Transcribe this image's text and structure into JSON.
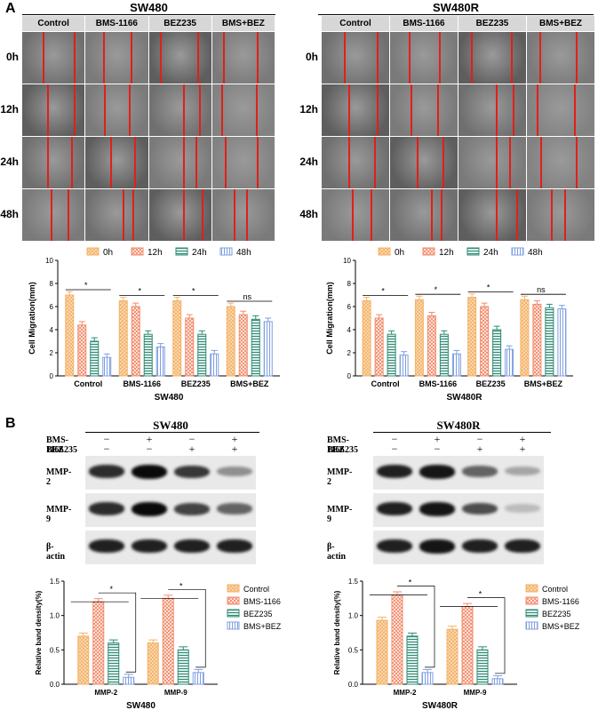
{
  "panel_a": {
    "letter": "A",
    "groups": [
      {
        "title": "SW480",
        "headers": [
          "Control",
          "BMS-1166",
          "BEZ235",
          "BMS+BEZ"
        ],
        "rows": [
          "0h",
          "12h",
          "24h",
          "48h"
        ]
      },
      {
        "title": "SW480R",
        "headers": [
          "Control",
          "BMS-1166",
          "BEZ235",
          "BMS+BEZ"
        ],
        "rows": [
          "0h",
          "12h",
          "24h",
          "48h"
        ]
      }
    ]
  },
  "panel_b": {
    "letter": "B",
    "blots": [
      {
        "title": "SW480",
        "treat_labels": [
          "BMS-1166",
          "BEZ235"
        ],
        "signs": [
          [
            "−",
            "+",
            "−",
            "+"
          ],
          [
            "−",
            "−",
            "+",
            "+"
          ]
        ],
        "proteins": [
          "MMP-2",
          "MMP-9",
          "β-actin"
        ]
      },
      {
        "title": "SW480R",
        "treat_labels": [
          "BMS-1166",
          "BEZ235"
        ],
        "signs": [
          [
            "−",
            "+",
            "−",
            "+"
          ],
          [
            "−",
            "−",
            "+",
            "+"
          ]
        ],
        "proteins": [
          "MMP-2",
          "MMP-9",
          "β-actin"
        ]
      }
    ]
  },
  "colors": {
    "c1": "#f4b36a",
    "c2": "#f28b6b",
    "c3": "#2e8b74",
    "c4": "#7f9fe0"
  },
  "chart_data": [
    {
      "type": "bar",
      "title": "",
      "xlabel": "SW480",
      "ylabel": "Cell Migration(mm)",
      "ylim": [
        0,
        10
      ],
      "yticks": [
        "0",
        "2",
        "4",
        "6",
        "8",
        "10"
      ],
      "categories": [
        "Control",
        "BMS-1166",
        "BEZ235",
        "BMS+BEZ"
      ],
      "series": [
        {
          "name": "0h",
          "values": [
            7.0,
            6.5,
            6.5,
            6.0
          ]
        },
        {
          "name": "12h",
          "values": [
            4.4,
            6.0,
            5.0,
            5.3
          ]
        },
        {
          "name": "24h",
          "values": [
            3.0,
            3.6,
            3.6,
            4.9
          ]
        },
        {
          "name": "48h",
          "values": [
            1.6,
            2.5,
            1.9,
            4.7
          ]
        }
      ],
      "annotations": [
        "*",
        "*",
        "*",
        "ns"
      ]
    },
    {
      "type": "bar",
      "title": "",
      "xlabel": "SW480R",
      "ylabel": "Cell Migration(mm)",
      "ylim": [
        0,
        10
      ],
      "yticks": [
        "0",
        "2",
        "4",
        "6",
        "8",
        "10"
      ],
      "categories": [
        "Control",
        "BMS-1166",
        "BEZ235",
        "BMS+BEZ"
      ],
      "series": [
        {
          "name": "0h",
          "values": [
            6.5,
            6.6,
            6.8,
            6.6
          ]
        },
        {
          "name": "12h",
          "values": [
            5.0,
            5.2,
            6.0,
            6.2
          ]
        },
        {
          "name": "24h",
          "values": [
            3.6,
            3.6,
            4.0,
            5.9
          ]
        },
        {
          "name": "48h",
          "values": [
            1.8,
            1.9,
            2.3,
            5.8
          ]
        }
      ],
      "annotations": [
        "*",
        "*",
        "*",
        "ns"
      ]
    },
    {
      "type": "bar",
      "title": "",
      "xlabel": "SW480",
      "ylabel": "Relative band density(%)",
      "ylim": [
        0,
        1.5
      ],
      "yticks": [
        "0.0",
        "0.5",
        "1.0",
        "1.5"
      ],
      "categories": [
        "MMP-2",
        "MMP-9"
      ],
      "series": [
        {
          "name": "Control",
          "values": [
            0.7,
            0.6
          ]
        },
        {
          "name": "BMS-1166",
          "values": [
            1.2,
            1.25
          ]
        },
        {
          "name": "BEZ235",
          "values": [
            0.6,
            0.5
          ]
        },
        {
          "name": "BMS+BEZ",
          "values": [
            0.1,
            0.17
          ]
        }
      ],
      "annotations": [
        "*",
        "*"
      ]
    },
    {
      "type": "bar",
      "title": "",
      "xlabel": "SW480R",
      "ylabel": "Relative band density(%)",
      "ylim": [
        0,
        1.5
      ],
      "yticks": [
        "0.0",
        "0.5",
        "1.0",
        "1.5"
      ],
      "categories": [
        "MMP-2",
        "MMP-9"
      ],
      "series": [
        {
          "name": "Control",
          "values": [
            0.93,
            0.8
          ]
        },
        {
          "name": "BMS-1166",
          "values": [
            1.3,
            1.13
          ]
        },
        {
          "name": "BEZ235",
          "values": [
            0.7,
            0.5
          ]
        },
        {
          "name": "BMS+BEZ",
          "values": [
            0.17,
            0.08
          ]
        }
      ],
      "annotations": [
        "*",
        "*"
      ]
    }
  ]
}
